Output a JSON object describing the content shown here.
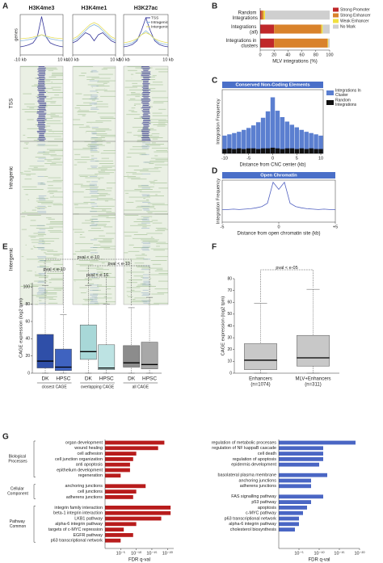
{
  "panel_letters": [
    "A",
    "B",
    "C",
    "D",
    "E",
    "F",
    "G"
  ],
  "chart_data": [
    {
      "type": "line",
      "title": "H3K4me3",
      "ylabel": "genes",
      "x": [
        -10,
        -8,
        -6,
        -4,
        -2,
        0,
        2,
        4,
        6,
        8,
        10
      ],
      "xlim": [
        -10,
        10
      ],
      "xticks": [
        {
          "value": -10,
          "label": "-10 kb"
        },
        {
          "value": 10,
          "label": "10 kb"
        }
      ],
      "ylim": [
        0,
        1
      ],
      "series": [
        {
          "color": "#36379a",
          "values": [
            0.2,
            0.22,
            0.25,
            0.3,
            0.45,
            0.95,
            0.45,
            0.3,
            0.25,
            0.22,
            0.2
          ]
        },
        {
          "color": "#86b6dc",
          "values": [
            0.35,
            0.36,
            0.38,
            0.4,
            0.45,
            0.5,
            0.45,
            0.4,
            0.38,
            0.36,
            0.35
          ]
        },
        {
          "color": "#e6de5a",
          "values": [
            0.4,
            0.41,
            0.42,
            0.44,
            0.47,
            0.5,
            0.47,
            0.44,
            0.42,
            0.41,
            0.4
          ]
        }
      ],
      "heatmap_rows": [
        "TSS",
        "Intragenic",
        "Intergenic"
      ]
    },
    {
      "type": "line",
      "title": "H3K4me1",
      "x": [
        -10,
        -8,
        -6,
        -4,
        -2,
        0,
        2,
        4,
        6,
        8,
        10
      ],
      "xlim": [
        -10,
        10
      ],
      "xticks": [
        {
          "value": -10,
          "label": "-10 kb"
        },
        {
          "value": 10,
          "label": "10 kb"
        }
      ],
      "ylim": [
        0,
        1
      ],
      "series": [
        {
          "color": "#36379a",
          "values": [
            0.3,
            0.35,
            0.45,
            0.55,
            0.5,
            0.35,
            0.5,
            0.55,
            0.45,
            0.35,
            0.3
          ]
        },
        {
          "color": "#86b6dc",
          "values": [
            0.35,
            0.4,
            0.5,
            0.6,
            0.7,
            0.75,
            0.7,
            0.6,
            0.5,
            0.4,
            0.35
          ]
        },
        {
          "color": "#e6de5a",
          "values": [
            0.4,
            0.45,
            0.55,
            0.65,
            0.75,
            0.8,
            0.75,
            0.65,
            0.55,
            0.45,
            0.4
          ]
        }
      ]
    },
    {
      "type": "line",
      "title": "H3K27ac",
      "x": [
        -10,
        -8,
        -6,
        -4,
        -2,
        0,
        2,
        4,
        6,
        8,
        10
      ],
      "xlim": [
        -10,
        10
      ],
      "xticks": [
        {
          "value": -10,
          "label": "-10 kb"
        },
        {
          "value": 10,
          "label": "10 kb"
        }
      ],
      "ylim": [
        0,
        1
      ],
      "legend": "upper right",
      "series": [
        {
          "name": "TSS",
          "color": "#36379a",
          "values": [
            0.2,
            0.22,
            0.26,
            0.35,
            0.6,
            0.92,
            0.6,
            0.35,
            0.26,
            0.22,
            0.2
          ]
        },
        {
          "name": "Intragenic",
          "color": "#86b6dc",
          "values": [
            0.25,
            0.27,
            0.3,
            0.38,
            0.5,
            0.6,
            0.5,
            0.38,
            0.3,
            0.27,
            0.25
          ]
        },
        {
          "name": "Intergenic",
          "color": "#e6de5a",
          "values": [
            0.3,
            0.32,
            0.35,
            0.4,
            0.5,
            0.55,
            0.5,
            0.4,
            0.35,
            0.32,
            0.3
          ]
        }
      ]
    },
    {
      "type": "stacked_bar",
      "categories": [
        "Random Integrations",
        "Integrations (all)",
        "Integrations in clusters"
      ],
      "xlim": [
        0,
        100
      ],
      "xticks": [
        0,
        20,
        40,
        60,
        80,
        100
      ],
      "xlabel": "MLV integrations (%)",
      "legend": "right",
      "series": [
        {
          "name": "Strong Promoter",
          "color": "#c0282a",
          "values": [
            2,
            20,
            20
          ]
        },
        {
          "name": "Strong Enhancer",
          "color": "#d9822b",
          "values": [
            3,
            68,
            77
          ]
        },
        {
          "name": "Weak Enhancer",
          "color": "#f0e040",
          "values": [
            2,
            2,
            1
          ]
        },
        {
          "name": "No Mark",
          "color": "#cfcfcf",
          "values": [
            93,
            10,
            2
          ]
        }
      ]
    },
    {
      "type": "bar",
      "title": "Conserved Non-Coding Elements",
      "title_band": "#4a6fc8",
      "x": [
        -10,
        -9,
        -8,
        -7,
        -6,
        -5,
        -4,
        -3,
        -2,
        -1,
        0,
        1,
        2,
        3,
        4,
        5,
        6,
        7,
        8,
        9,
        10
      ],
      "xlim": [
        -10.5,
        10.5
      ],
      "xticks": [
        -10,
        -5,
        0,
        5,
        10
      ],
      "ylim": [
        0,
        1
      ],
      "xlabel": "Distance from CNC center (kb)",
      "ylabel": "Integration Frequency",
      "legend": "right",
      "series": [
        {
          "name": "Integrations In Cluster",
          "color": "#5b7fd0",
          "values": [
            0.28,
            0.3,
            0.32,
            0.34,
            0.37,
            0.4,
            0.44,
            0.49,
            0.56,
            0.66,
            0.88,
            0.67,
            0.57,
            0.5,
            0.45,
            0.41,
            0.37,
            0.34,
            0.32,
            0.3,
            0.28
          ]
        },
        {
          "name": "Random Integrations",
          "color": "#111111",
          "values": [
            0.07,
            0.08,
            0.07,
            0.08,
            0.07,
            0.08,
            0.08,
            0.07,
            0.08,
            0.08,
            0.09,
            0.08,
            0.07,
            0.08,
            0.08,
            0.07,
            0.08,
            0.07,
            0.08,
            0.07,
            0.07
          ]
        }
      ]
    },
    {
      "type": "line",
      "title": "Open Chromatin",
      "title_band": "#4a6fc8",
      "x": [
        -5,
        -4.5,
        -4,
        -3.5,
        -3,
        -2.5,
        -2,
        -1.5,
        -1,
        -0.5,
        0,
        0.5,
        1,
        1.5,
        2,
        2.5,
        3,
        3.5,
        4,
        4.5,
        5
      ],
      "xlim": [
        -5,
        5
      ],
      "xticks": [
        -5,
        0,
        {
          "value": 5,
          "label": "+5"
        }
      ],
      "ylim": [
        0,
        1
      ],
      "xlabel": "Distance from open chromatin site (kb)",
      "ylabel": "Integration Frequency",
      "series": [
        {
          "color": "#5060c0",
          "values": [
            0.3,
            0.3,
            0.31,
            0.3,
            0.31,
            0.32,
            0.34,
            0.37,
            0.45,
            0.95,
            0.78,
            0.95,
            0.45,
            0.37,
            0.34,
            0.32,
            0.31,
            0.3,
            0.31,
            0.3,
            0.3
          ]
        }
      ]
    },
    {
      "type": "box",
      "categories": [
        "DK",
        "HPSC",
        "DK",
        "HPSC",
        "DK",
        "HPSC"
      ],
      "groups": [
        "closest CAGE",
        "overlapping CAGE",
        "all CAGE"
      ],
      "stats": [
        [
          0,
          6,
          14,
          45,
          102
        ],
        [
          0,
          3,
          7,
          28,
          68
        ],
        [
          0,
          16,
          25,
          56,
          102
        ],
        [
          0,
          4,
          6,
          33,
          80
        ],
        [
          0,
          7,
          12,
          32,
          76
        ],
        [
          0,
          5,
          10,
          36,
          88
        ]
      ],
      "colors": [
        "#2f4fa8",
        "#3f63c0",
        "#a8d8d8",
        "#bde3e3",
        "#8c8c8c",
        "#a8a8a8"
      ],
      "ylim": [
        0,
        105
      ],
      "yticks": [
        0,
        20,
        40,
        60,
        80,
        100
      ],
      "ylabel": "CAGE expression (log2 tpm)",
      "annotations": [
        "pval < e-10",
        "pval < e-10",
        "pval < e-10",
        "pval < e-16"
      ]
    },
    {
      "type": "box",
      "categories": [
        "Enhancers",
        "MLV+Enhancers"
      ],
      "counts": [
        "(n=1074)",
        "(n=311)"
      ],
      "stats": [
        [
          0,
          3,
          11,
          25,
          59
        ],
        [
          0,
          6,
          13,
          32,
          71
        ]
      ],
      "colors": [
        "#c8c8c8",
        "#c8c8c8"
      ],
      "ylim": [
        0,
        80
      ],
      "yticks": [
        0,
        10,
        20,
        30,
        40,
        50,
        60,
        70,
        80
      ],
      "ylabel": "CAGE expression (log2 tpm)",
      "annotations": [
        "pval < e-05"
      ]
    },
    {
      "type": "bar_log",
      "xscale": "log",
      "color": "#b81c1c",
      "xlim": [
        1,
        1e-22
      ],
      "xticks": [
        {
          "value": 1e-05,
          "label": "10⁻⁵"
        },
        {
          "value": 1e-10,
          "label": "10⁻¹⁰"
        },
        {
          "value": 1e-15,
          "label": "10⁻¹⁵"
        },
        {
          "value": 1e-20,
          "label": "10⁻²⁰"
        }
      ],
      "xlabel": "FDR q-val",
      "groups": [
        {
          "name": "Biological Processes",
          "categories": [
            "organ development",
            "wound healing",
            "cell adhesion",
            "cell junction organization",
            "anti apoptosis",
            "epithelium development",
            "regeneration"
          ],
          "values": [
            1e-19,
            1e-17,
            1e-10,
            1e-09,
            1e-08,
            1e-08,
            1e-05
          ]
        },
        {
          "name": "Cellular Component",
          "categories": [
            "anchoring junctions",
            "cell junctions",
            "adherens junctions"
          ],
          "values": [
            1e-13,
            1e-10,
            1e-09
          ]
        },
        {
          "name": "Pathway Common",
          "categories": [
            "integrin family interaction",
            "beta-1 integrin interaction",
            "LKB1 pathway",
            "alpha-6 integrin pathway",
            "targets of c-MYC repression",
            "EGFR pathway",
            "p63 transcriptional network"
          ],
          "values": [
            1e-21,
            1e-21,
            1e-18,
            1e-10,
            1e-06,
            1e-09,
            1e-05
          ]
        }
      ]
    },
    {
      "type": "bar_log",
      "xscale": "log",
      "color": "#4a66c4",
      "xlim": [
        1,
        1e-20
      ],
      "xticks": [
        {
          "value": 1e-05,
          "label": "10⁻⁵"
        },
        {
          "value": 1e-10,
          "label": "10⁻¹⁰"
        },
        {
          "value": 1e-15,
          "label": "10⁻¹⁵"
        },
        {
          "value": 1e-20,
          "label": "10⁻²⁰"
        }
      ],
      "xlabel": "FDR q-val",
      "groups": [
        {
          "categories": [
            "regulation of metabolic processes",
            "regulation of NF kappaB cascade",
            "cell death",
            "regulation of apoptosis",
            "epidermis development"
          ],
          "values": [
            1e-19,
            1e-11,
            1e-11,
            1e-11,
            1e-10
          ]
        },
        {
          "categories": [
            "basolateral plasma membrane",
            "anchoring junctions",
            "adherens junctions"
          ],
          "values": [
            1e-12,
            1e-08,
            1e-08
          ]
        },
        {
          "categories": [
            "FAS signalling pathway",
            "p53 pathway",
            "apoptosis",
            "c-MYC pathway",
            "p63 transcriptional network",
            "alpha-6 integrin pathway",
            "cholesterol biosynthesis"
          ],
          "values": [
            1e-11,
            1e-08,
            1e-07,
            1e-06,
            1e-05,
            1e-05,
            0.0001
          ]
        }
      ]
    }
  ]
}
